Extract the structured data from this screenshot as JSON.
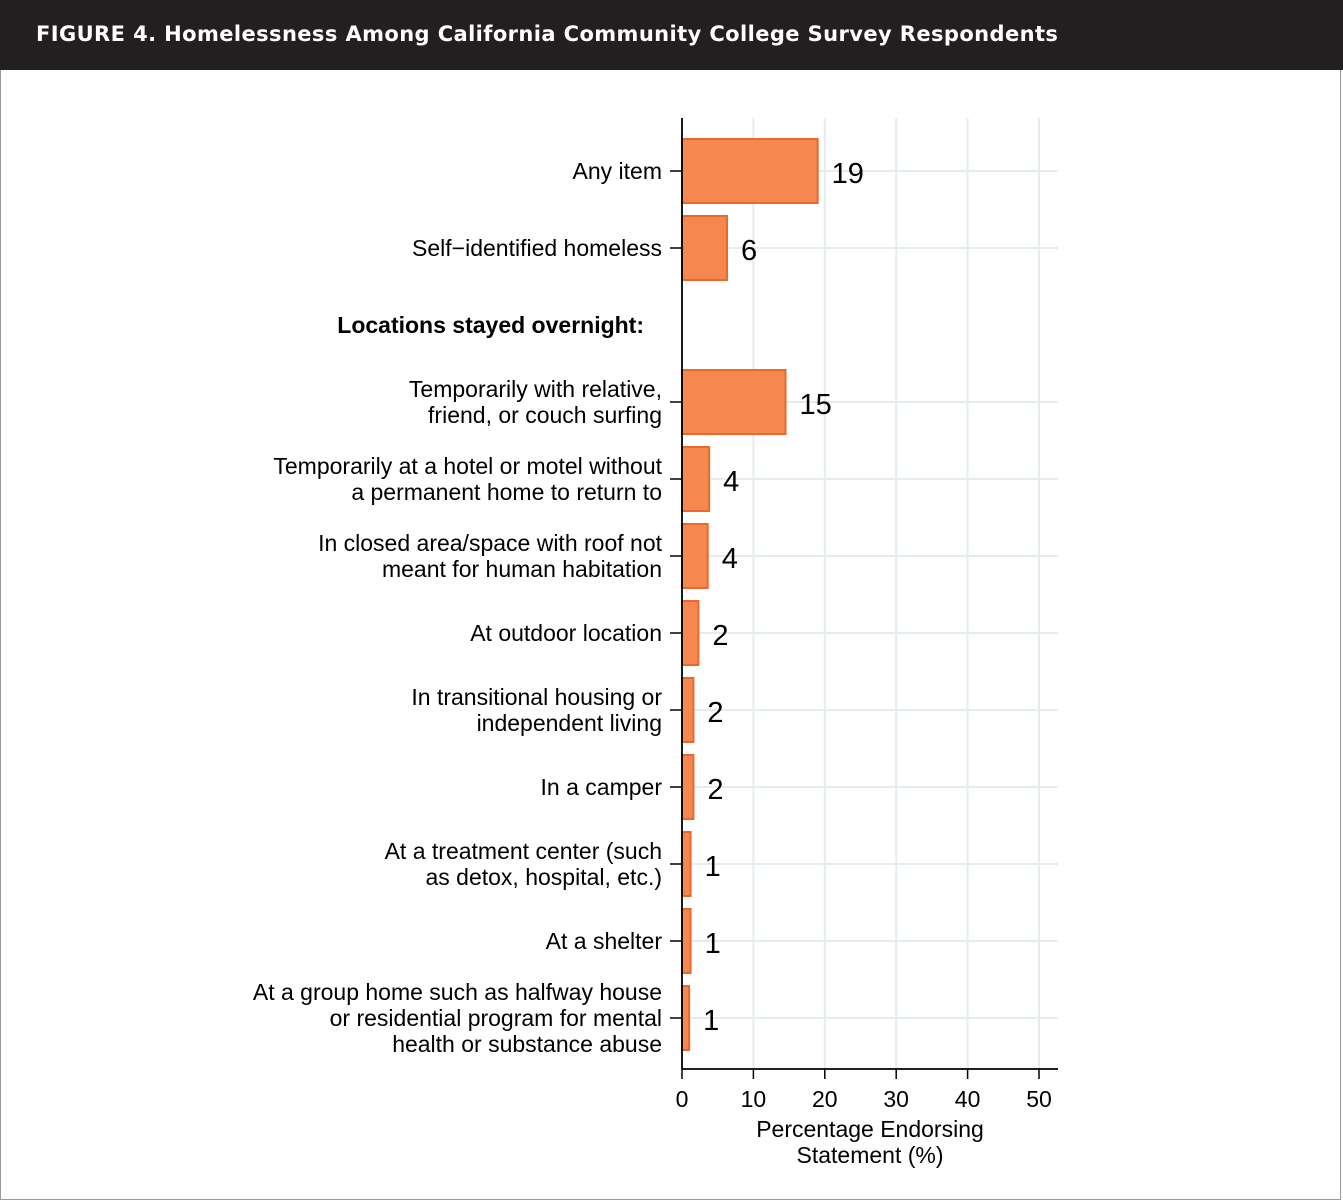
{
  "figure": {
    "title": "FIGURE 4. Homelessness Among California Community College Survey Respondents"
  },
  "colors": {
    "bar_fill": "#f5874f",
    "bar_stroke": "#e8692e",
    "grid": "#e4ecef",
    "header_bg": "#231f20"
  },
  "chart_data": {
    "type": "bar",
    "orientation": "horizontal",
    "title": "",
    "xlabel": "Percentage Endorsing Statement (%)",
    "ylabel": "",
    "xlim": [
      0,
      50
    ],
    "x_ticks": [
      0,
      10,
      20,
      30,
      40,
      50
    ],
    "grid": true,
    "rows": [
      {
        "label": [
          "Any item"
        ],
        "value": 19,
        "value_label": "19"
      },
      {
        "label": [
          "Self−identified homeless"
        ],
        "value": 6.3,
        "value_label": "6"
      },
      {
        "heading": "Locations stayed overnight:"
      },
      {
        "label": [
          "Temporarily with relative,",
          "friend, or couch surfing"
        ],
        "value": 14.5,
        "value_label": "15"
      },
      {
        "label": [
          "Temporarily at a hotel or motel without",
          "a permanent home to return to"
        ],
        "value": 3.8,
        "value_label": "4"
      },
      {
        "label": [
          "In closed area/space with roof not",
          "meant for human habitation"
        ],
        "value": 3.6,
        "value_label": "4"
      },
      {
        "label": [
          "At outdoor location"
        ],
        "value": 2.3,
        "value_label": "2"
      },
      {
        "label": [
          "In transitional housing or",
          "independent living"
        ],
        "value": 1.6,
        "value_label": "2"
      },
      {
        "label": [
          "In a camper"
        ],
        "value": 1.6,
        "value_label": "2"
      },
      {
        "label": [
          "At a treatment center (such",
          "as detox, hospital, etc.)"
        ],
        "value": 1.2,
        "value_label": "1"
      },
      {
        "label": [
          "At a shelter"
        ],
        "value": 1.2,
        "value_label": "1"
      },
      {
        "label": [
          "At a group home such as halfway house",
          "or residential program for mental",
          "health or substance abuse"
        ],
        "value": 1.0,
        "value_label": "1"
      }
    ]
  }
}
